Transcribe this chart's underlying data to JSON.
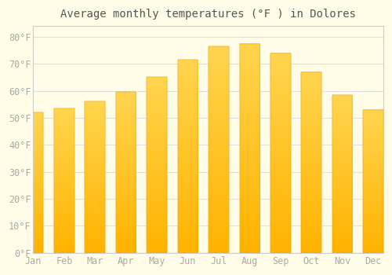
{
  "title": "Average monthly temperatures (°F ) in Dolores",
  "months": [
    "Jan",
    "Feb",
    "Mar",
    "Apr",
    "May",
    "Jun",
    "Jul",
    "Aug",
    "Sep",
    "Oct",
    "Nov",
    "Dec"
  ],
  "values": [
    52,
    53.5,
    56,
    59.5,
    65,
    71.5,
    76.5,
    77.5,
    74,
    67,
    58.5,
    53
  ],
  "bar_color_top": "#FFC433",
  "bar_color_bottom": "#FFB300",
  "bar_edge_color": "#E8A000",
  "background_color": "#FFFDE7",
  "plot_bg_color": "#FFFDE7",
  "grid_color": "#E0E0E0",
  "border_color": "#CCCCCC",
  "tick_color": "#AAAAAA",
  "title_color": "#555555",
  "yticks": [
    0,
    10,
    20,
    30,
    40,
    50,
    60,
    70,
    80
  ],
  "ylim": [
    0,
    84
  ],
  "title_fontsize": 10,
  "tick_fontsize": 8.5
}
